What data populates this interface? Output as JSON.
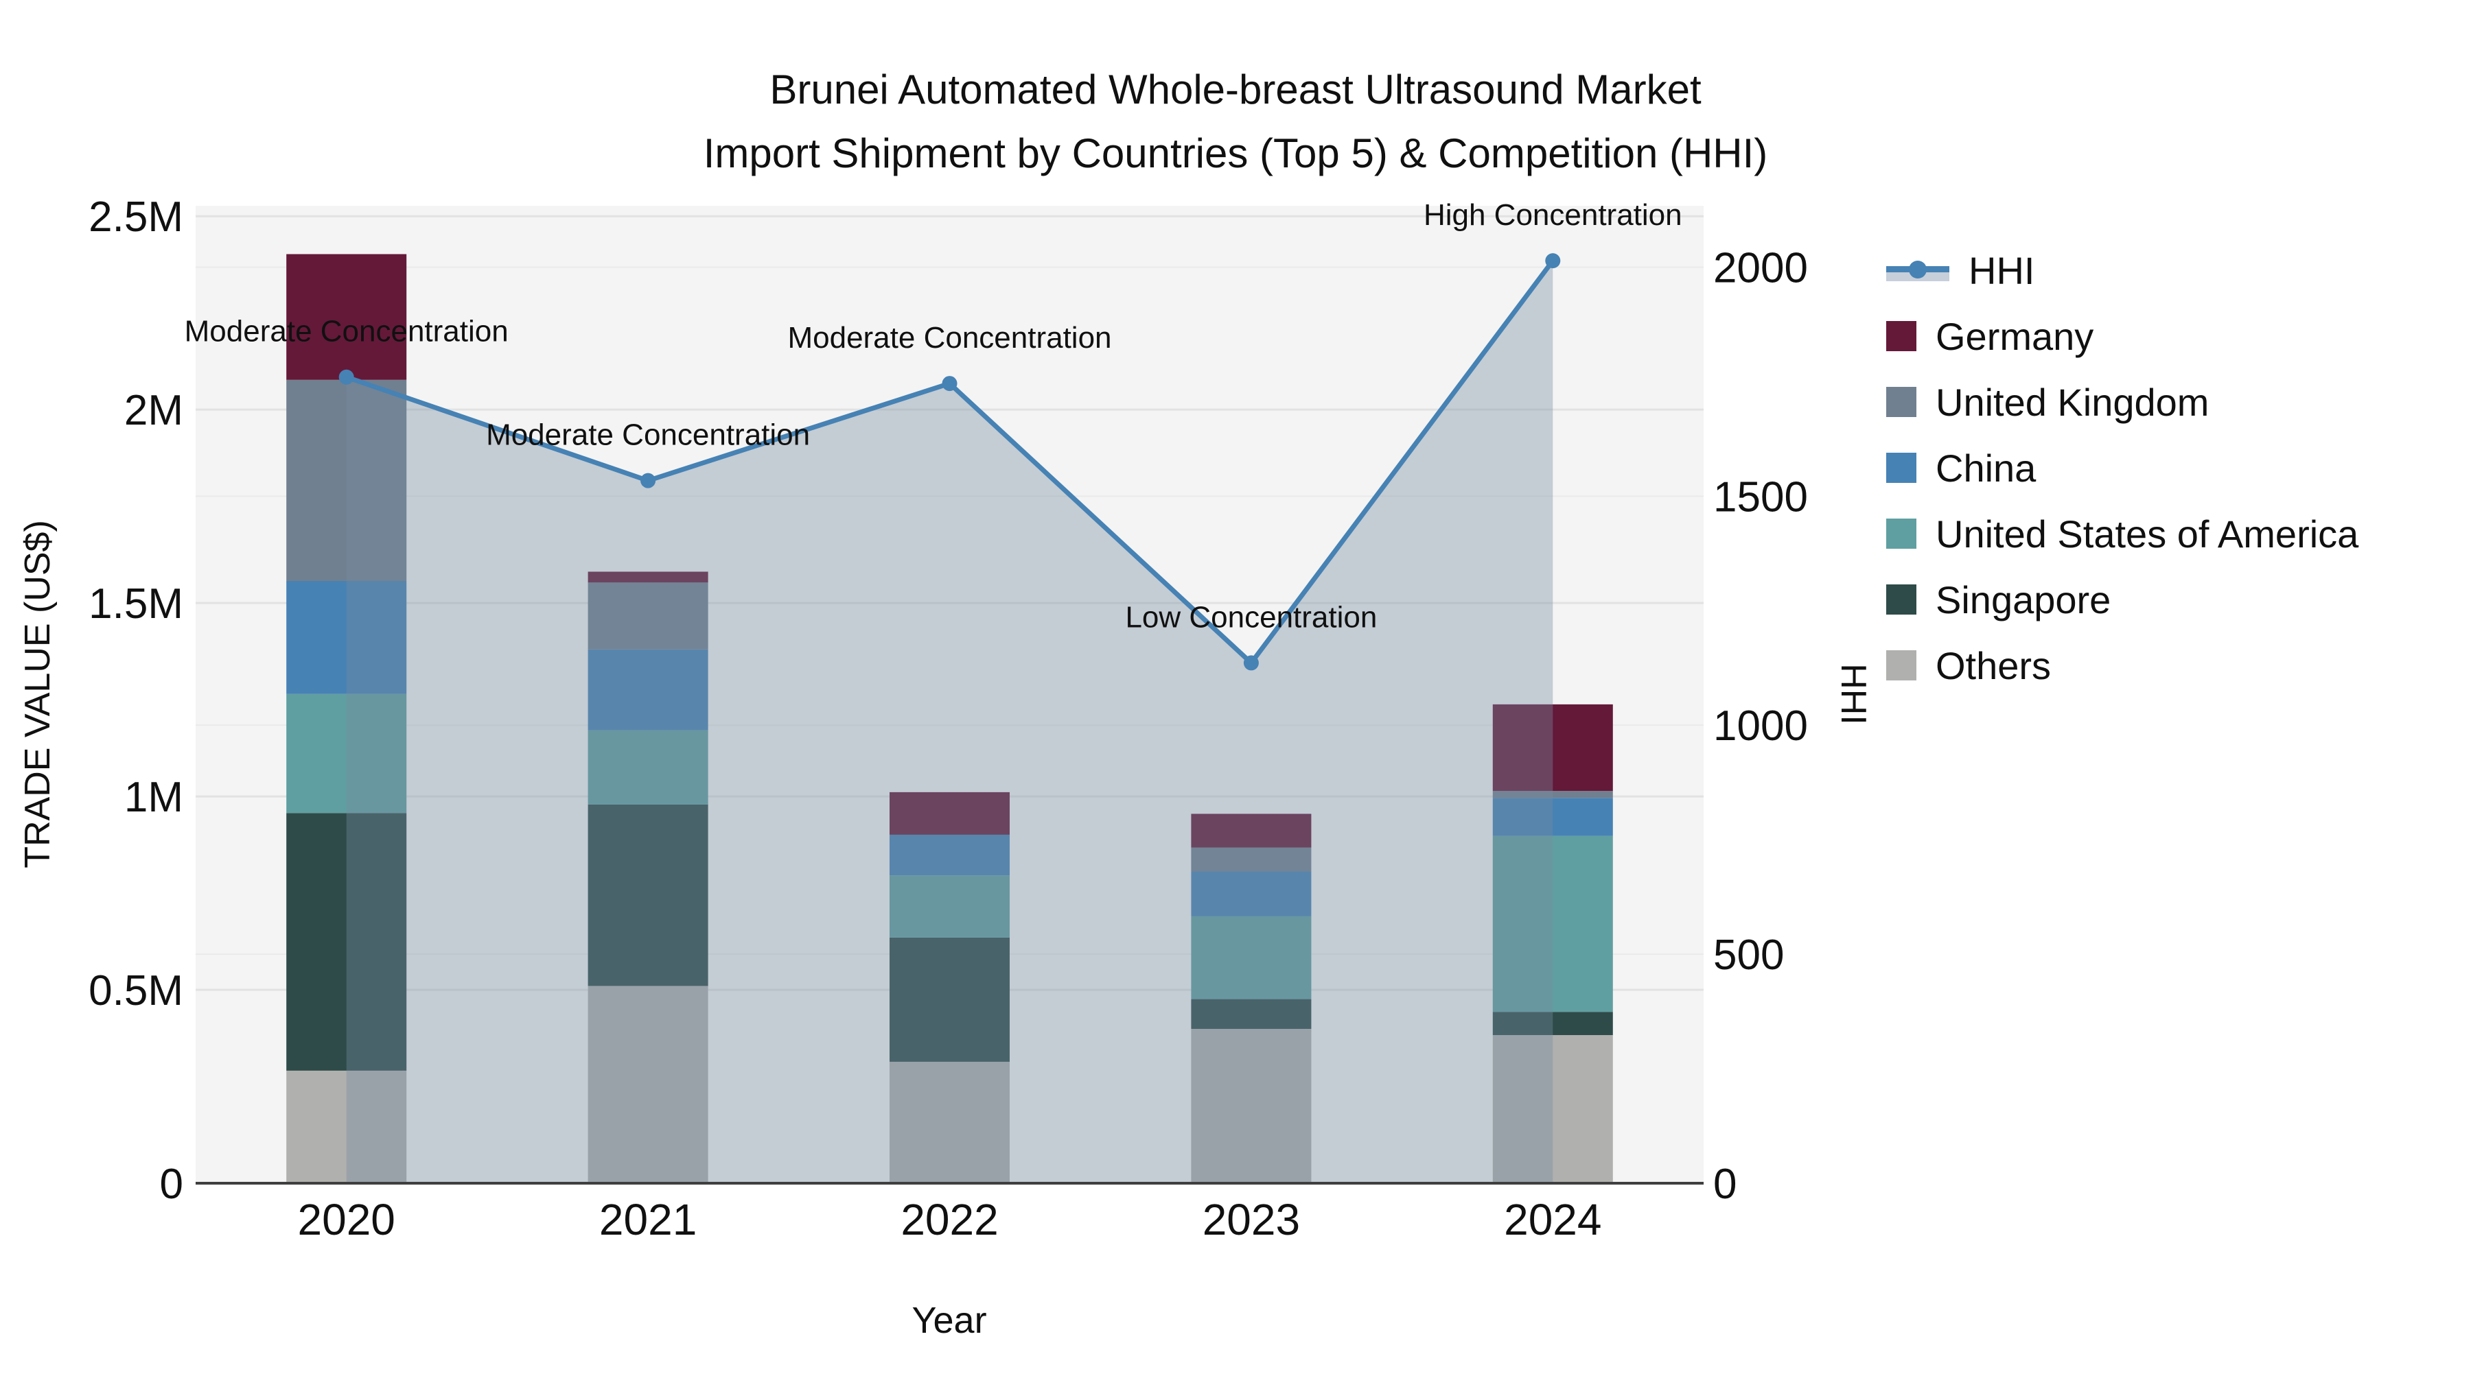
{
  "title": {
    "line1": "Brunei Automated Whole-breast Ultrasound Market",
    "line2": "Import Shipment by Countries (Top 5) & Competition (HHI)"
  },
  "axes": {
    "y_left_title": "TRADE VALUE (US$)",
    "y_right_title": "HHI",
    "x_title": "Year",
    "y_left_ticks": [
      "0",
      "0.5M",
      "1M",
      "1.5M",
      "2M",
      "2.5M"
    ],
    "y_right_ticks": [
      "0",
      "500",
      "1000",
      "1500",
      "2000"
    ]
  },
  "legend": {
    "hhi_label": "HHI",
    "items": [
      {
        "label": "Germany",
        "color": "#641939"
      },
      {
        "label": "United Kingdom",
        "color": "#708090"
      },
      {
        "label": "China",
        "color": "#4682b4"
      },
      {
        "label": "United States of America",
        "color": "#5f9fa1"
      },
      {
        "label": "Singapore",
        "color": "#2e4b49"
      },
      {
        "label": "Others",
        "color": "#b0b0ae"
      }
    ]
  },
  "colors": {
    "hhi_line": "#4682b4",
    "hhi_area_fill": "rgba(118,140,160,0.38)",
    "plot_bg": "#f4f4f4",
    "grid_left": "#e2e2e2",
    "grid_right": "#eaeaea",
    "axis_line": "#3f3f3f",
    "annotation_text": "#101010"
  },
  "chart_data": {
    "type": "bar",
    "stacked": true,
    "title": "Brunei Automated Whole-breast Ultrasound Market Import Shipment by Countries (Top 5) & Competition (HHI)",
    "categories": [
      "2020",
      "2021",
      "2022",
      "2023",
      "2024"
    ],
    "xlabel": "Year",
    "ylabel": "TRADE VALUE (US$)",
    "y2label": "HHI",
    "ylim": [
      0,
      2527000
    ],
    "y2lim": [
      0,
      2134
    ],
    "grid": true,
    "legend_position": "right",
    "series": [
      {
        "name": "Germany",
        "color": "#641939",
        "values": [
          325000,
          28000,
          110000,
          87000,
          224000
        ]
      },
      {
        "name": "United Kingdom",
        "color": "#708090",
        "values": [
          520000,
          173000,
          0,
          62000,
          18000
        ]
      },
      {
        "name": "China",
        "color": "#4682b4",
        "values": [
          292000,
          209000,
          105000,
          116000,
          98000
        ]
      },
      {
        "name": "United States of America",
        "color": "#5f9fa1",
        "values": [
          308000,
          192000,
          161000,
          214000,
          455000
        ]
      },
      {
        "name": "Singapore",
        "color": "#2e4b49",
        "values": [
          666000,
          469000,
          321000,
          77000,
          60000
        ]
      },
      {
        "name": "Others",
        "color": "#b0b0ae",
        "values": [
          291000,
          510000,
          314000,
          399000,
          383000
        ]
      }
    ],
    "bar_totals": [
      2402000,
      1581000,
      1011000,
      955000,
      1238000
    ],
    "line_series": {
      "name": "HHI",
      "type": "line",
      "axis": "right",
      "color": "#4682b4",
      "area_fill": "rgba(118,140,160,0.38)",
      "values": [
        1760,
        1534,
        1746,
        1136,
        2014
      ]
    },
    "annotations": [
      {
        "year": "2020",
        "text": "Moderate Concentration"
      },
      {
        "year": "2021",
        "text": "Moderate Concentration"
      },
      {
        "year": "2022",
        "text": "Moderate Concentration"
      },
      {
        "year": "2023",
        "text": "Low Concentration"
      },
      {
        "year": "2024",
        "text": "High Concentration"
      }
    ]
  }
}
